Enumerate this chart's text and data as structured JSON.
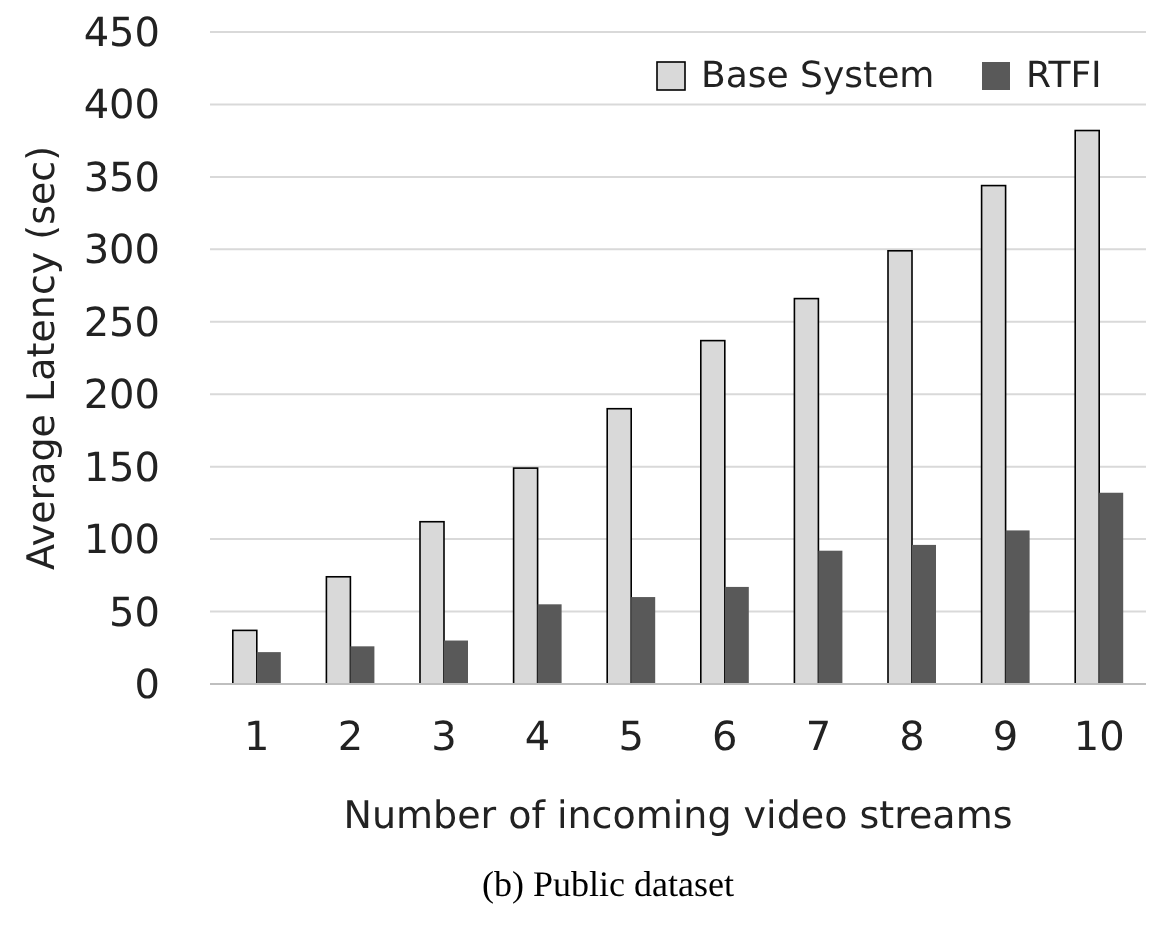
{
  "chart_data": {
    "type": "bar",
    "xlabel": "Number of incoming video streams",
    "ylabel": "Average Latency (sec)",
    "annotations": [
      "(b) Public dataset"
    ],
    "categories": [
      "1",
      "2",
      "3",
      "4",
      "5",
      "6",
      "7",
      "8",
      "9",
      "10"
    ],
    "series": [
      {
        "name": "Base System",
        "color": "#d9d9d9",
        "values": [
          37,
          74,
          112,
          149,
          190,
          237,
          266,
          299,
          344,
          382
        ]
      },
      {
        "name": "RTFI",
        "color": "#595959",
        "values": [
          22,
          26,
          30,
          55,
          60,
          67,
          92,
          96,
          106,
          132
        ]
      }
    ],
    "ylim": [
      0,
      450
    ],
    "yticks": [
      0,
      50,
      100,
      150,
      200,
      250,
      300,
      350,
      400,
      450
    ],
    "grid": "y",
    "legend": "top right"
  }
}
